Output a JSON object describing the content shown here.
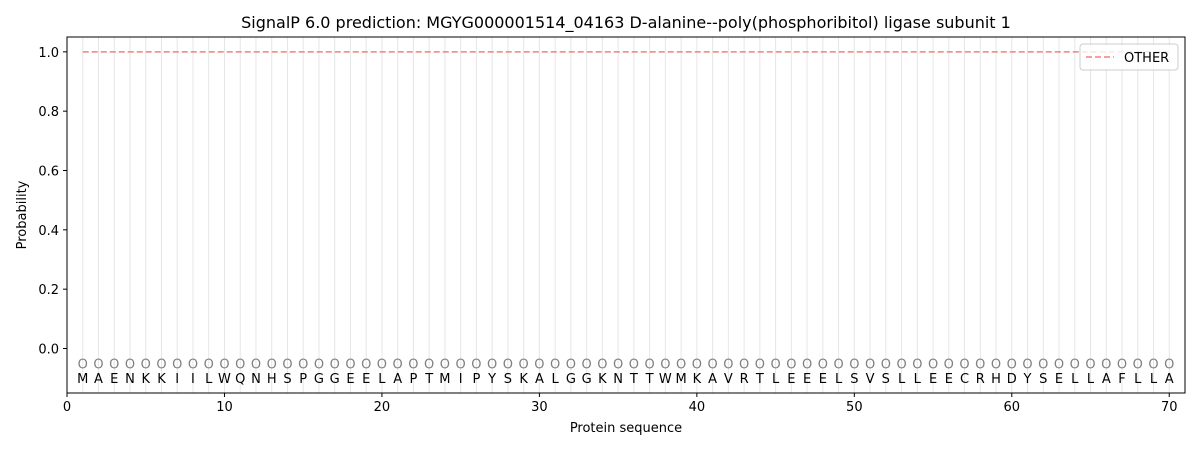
{
  "chart_data": {
    "type": "line",
    "title": "SignalP 6.0 prediction: MGYG000001514_04163 D-alanine--poly(phosphoribitol) ligase subunit 1",
    "xlabel": "Protein sequence",
    "ylabel": "Probability",
    "xlim": [
      0,
      71
    ],
    "ylim": [
      -0.15,
      1.05
    ],
    "xticks": [
      0,
      10,
      20,
      30,
      40,
      50,
      60,
      70
    ],
    "yticks": [
      0.0,
      0.2,
      0.4,
      0.6,
      0.8,
      1.0
    ],
    "ytick_labels": [
      "0.0",
      "0.2",
      "0.4",
      "0.6",
      "0.8",
      "1.0"
    ],
    "sequence": [
      "M",
      "A",
      "E",
      "N",
      "K",
      "K",
      "I",
      "I",
      "L",
      "W",
      "Q",
      "N",
      "H",
      "S",
      "P",
      "G",
      "G",
      "E",
      "E",
      "L",
      "A",
      "P",
      "T",
      "M",
      "I",
      "P",
      "Y",
      "S",
      "K",
      "A",
      "L",
      "G",
      "G",
      "K",
      "N",
      "T",
      "T",
      "W",
      "M",
      "K",
      "A",
      "V",
      "R",
      "T",
      "L",
      "E",
      "E",
      "E",
      "L",
      "S",
      "V",
      "S",
      "L",
      "L",
      "E",
      "E",
      "C",
      "R",
      "H",
      "D",
      "Y",
      "S",
      "E",
      "L",
      "L",
      "A",
      "F",
      "L",
      "L",
      "A"
    ],
    "predicted_label": "O",
    "series": [
      {
        "name": "OTHER",
        "color": "#f08080",
        "style": "dashed",
        "x_range": [
          1,
          70
        ],
        "value": 1.0
      }
    ],
    "grid": "vertical lines at each residue",
    "legend_position": "top-right"
  }
}
